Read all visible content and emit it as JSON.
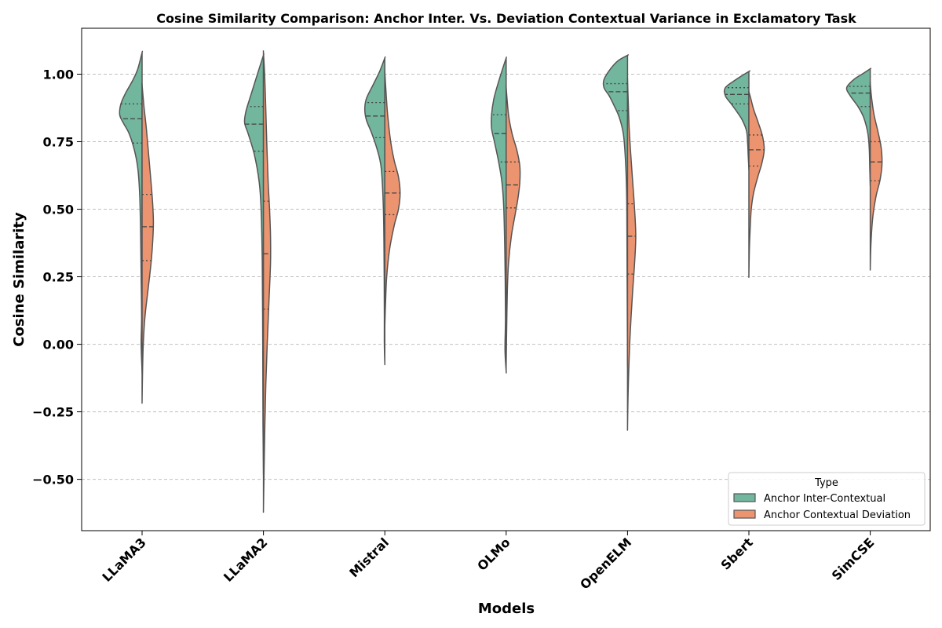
{
  "chart_data": {
    "type": "violin",
    "split": true,
    "title": "Cosine Similarity Comparison: Anchor Inter. Vs. Deviation Contextual Variance in Exclamatory Task",
    "xlabel": "Models",
    "ylabel": "Cosine Similarity",
    "ylim": [
      -0.69,
      1.17
    ],
    "yticks": [
      -0.5,
      -0.25,
      0.0,
      0.25,
      0.5,
      0.75,
      1.0
    ],
    "ytick_labels": [
      "−0.50",
      "−0.25",
      "0.00",
      "0.25",
      "0.50",
      "0.75",
      "1.00"
    ],
    "grid": "y-dashed",
    "categories": [
      "LLaMA3",
      "LLaMA2",
      "Mistral",
      "OLMo",
      "OpenELM",
      "Sbert",
      "SimCSE"
    ],
    "legend": {
      "title": "Type",
      "position": "lower-right",
      "entries": [
        "Anchor Inter-Contextual",
        "Anchor Contextual Deviation"
      ]
    },
    "colors": {
      "Anchor Inter-Contextual": "#72b69e",
      "Anchor Contextual Deviation": "#ec9470",
      "edge": "#555555",
      "grid": "#c0c0c0"
    },
    "series": [
      {
        "name": "Anchor Inter-Contextual",
        "side": "left",
        "violins": [
          {
            "min": -0.1,
            "max": 1.08,
            "q1": 0.745,
            "median": 0.835,
            "q3": 0.89,
            "profile": [
              [
                -0.1,
                0.0
              ],
              [
                0.0,
                0.04
              ],
              [
                0.1,
                0.02
              ],
              [
                0.25,
                0.04
              ],
              [
                0.4,
                0.06
              ],
              [
                0.55,
                0.1
              ],
              [
                0.65,
                0.18
              ],
              [
                0.72,
                0.33
              ],
              [
                0.78,
                0.55
              ],
              [
                0.82,
                0.8
              ],
              [
                0.85,
                0.95
              ],
              [
                0.89,
                0.9
              ],
              [
                0.93,
                0.7
              ],
              [
                0.98,
                0.38
              ],
              [
                1.02,
                0.18
              ],
              [
                1.08,
                0.0
              ]
            ]
          },
          {
            "min": -0.47,
            "max": 1.07,
            "q1": 0.715,
            "median": 0.815,
            "q3": 0.88,
            "profile": [
              [
                -0.47,
                0.0
              ],
              [
                -0.3,
                0.02
              ],
              [
                0.0,
                0.03
              ],
              [
                0.3,
                0.05
              ],
              [
                0.5,
                0.1
              ],
              [
                0.6,
                0.18
              ],
              [
                0.7,
                0.38
              ],
              [
                0.78,
                0.65
              ],
              [
                0.82,
                0.8
              ],
              [
                0.86,
                0.75
              ],
              [
                0.91,
                0.58
              ],
              [
                0.96,
                0.4
              ],
              [
                1.01,
                0.22
              ],
              [
                1.07,
                0.0
              ]
            ]
          },
          {
            "min": -0.07,
            "max": 1.06,
            "q1": 0.765,
            "median": 0.845,
            "q3": 0.895,
            "profile": [
              [
                -0.07,
                0.0
              ],
              [
                0.0,
                0.02
              ],
              [
                0.1,
                0.02
              ],
              [
                0.3,
                0.03
              ],
              [
                0.5,
                0.06
              ],
              [
                0.65,
                0.15
              ],
              [
                0.72,
                0.32
              ],
              [
                0.78,
                0.55
              ],
              [
                0.83,
                0.78
              ],
              [
                0.87,
                0.85
              ],
              [
                0.91,
                0.78
              ],
              [
                0.96,
                0.5
              ],
              [
                1.01,
                0.22
              ],
              [
                1.06,
                0.0
              ]
            ]
          },
          {
            "min": -0.1,
            "max": 1.06,
            "q1": 0.675,
            "median": 0.78,
            "q3": 0.85,
            "profile": [
              [
                -0.1,
                0.0
              ],
              [
                -0.02,
                0.05
              ],
              [
                0.1,
                0.03
              ],
              [
                0.3,
                0.05
              ],
              [
                0.5,
                0.1
              ],
              [
                0.6,
                0.18
              ],
              [
                0.68,
                0.33
              ],
              [
                0.75,
                0.5
              ],
              [
                0.8,
                0.62
              ],
              [
                0.85,
                0.62
              ],
              [
                0.91,
                0.52
              ],
              [
                0.97,
                0.33
              ],
              [
                1.02,
                0.15
              ],
              [
                1.06,
                0.0
              ]
            ]
          },
          {
            "min": -0.07,
            "max": 1.07,
            "q1": 0.865,
            "median": 0.935,
            "q3": 0.965,
            "profile": [
              [
                -0.07,
                0.0
              ],
              [
                0.1,
                0.01
              ],
              [
                0.3,
                0.02
              ],
              [
                0.5,
                0.03
              ],
              [
                0.6,
                0.05
              ],
              [
                0.7,
                0.1
              ],
              [
                0.78,
                0.18
              ],
              [
                0.84,
                0.35
              ],
              [
                0.88,
                0.55
              ],
              [
                0.92,
                0.78
              ],
              [
                0.95,
                1.0
              ],
              [
                0.98,
                1.0
              ],
              [
                1.02,
                0.72
              ],
              [
                1.05,
                0.4
              ],
              [
                1.07,
                0.0
              ]
            ]
          },
          {
            "min": 0.65,
            "max": 1.01,
            "q1": 0.89,
            "median": 0.925,
            "q3": 0.95,
            "profile": [
              [
                0.65,
                0.0
              ],
              [
                0.7,
                0.03
              ],
              [
                0.74,
                0.05
              ],
              [
                0.79,
                0.1
              ],
              [
                0.83,
                0.28
              ],
              [
                0.86,
                0.5
              ],
              [
                0.89,
                0.75
              ],
              [
                0.92,
                1.0
              ],
              [
                0.95,
                1.0
              ],
              [
                0.98,
                0.55
              ],
              [
                1.01,
                0.0
              ]
            ]
          },
          {
            "min": 0.59,
            "max": 1.02,
            "q1": 0.88,
            "median": 0.93,
            "q3": 0.955,
            "profile": [
              [
                0.59,
                0.0
              ],
              [
                0.65,
                0.02
              ],
              [
                0.72,
                0.04
              ],
              [
                0.78,
                0.1
              ],
              [
                0.84,
                0.28
              ],
              [
                0.88,
                0.52
              ],
              [
                0.92,
                0.85
              ],
              [
                0.95,
                1.0
              ],
              [
                0.98,
                0.7
              ],
              [
                1.0,
                0.35
              ],
              [
                1.02,
                0.0
              ]
            ]
          }
        ]
      },
      {
        "name": "Anchor Contextual Deviation",
        "side": "right",
        "violins": [
          {
            "min": -0.21,
            "max": 0.96,
            "q1": 0.31,
            "median": 0.435,
            "q3": 0.555,
            "profile": [
              [
                -0.21,
                0.0
              ],
              [
                -0.1,
                0.02
              ],
              [
                0.0,
                0.05
              ],
              [
                0.1,
                0.12
              ],
              [
                0.2,
                0.25
              ],
              [
                0.3,
                0.38
              ],
              [
                0.38,
                0.45
              ],
              [
                0.45,
                0.48
              ],
              [
                0.52,
                0.45
              ],
              [
                0.6,
                0.38
              ],
              [
                0.7,
                0.28
              ],
              [
                0.8,
                0.18
              ],
              [
                0.88,
                0.08
              ],
              [
                0.96,
                0.0
              ]
            ]
          },
          {
            "min": -0.61,
            "max": 1.08,
            "q1": 0.13,
            "median": 0.335,
            "q3": 0.53,
            "profile": [
              [
                -0.61,
                0.0
              ],
              [
                -0.45,
                0.03
              ],
              [
                -0.3,
                0.06
              ],
              [
                -0.15,
                0.1
              ],
              [
                0.0,
                0.16
              ],
              [
                0.15,
                0.23
              ],
              [
                0.3,
                0.3
              ],
              [
                0.4,
                0.3
              ],
              [
                0.5,
                0.26
              ],
              [
                0.6,
                0.2
              ],
              [
                0.75,
                0.14
              ],
              [
                0.9,
                0.09
              ],
              [
                1.0,
                0.05
              ],
              [
                1.08,
                0.0
              ]
            ]
          },
          {
            "min": 0.065,
            "max": 1.01,
            "q1": 0.48,
            "median": 0.56,
            "q3": 0.64,
            "profile": [
              [
                0.065,
                0.0
              ],
              [
                0.15,
                0.03
              ],
              [
                0.25,
                0.08
              ],
              [
                0.35,
                0.2
              ],
              [
                0.44,
                0.4
              ],
              [
                0.5,
                0.58
              ],
              [
                0.56,
                0.65
              ],
              [
                0.62,
                0.58
              ],
              [
                0.68,
                0.4
              ],
              [
                0.75,
                0.25
              ],
              [
                0.85,
                0.12
              ],
              [
                0.95,
                0.04
              ],
              [
                1.01,
                0.0
              ]
            ]
          },
          {
            "min": -0.07,
            "max": 0.95,
            "q1": 0.505,
            "median": 0.59,
            "q3": 0.675,
            "profile": [
              [
                -0.07,
                0.0
              ],
              [
                0.05,
                0.02
              ],
              [
                0.2,
                0.05
              ],
              [
                0.3,
                0.1
              ],
              [
                0.4,
                0.22
              ],
              [
                0.48,
                0.38
              ],
              [
                0.54,
                0.5
              ],
              [
                0.6,
                0.58
              ],
              [
                0.66,
                0.58
              ],
              [
                0.72,
                0.45
              ],
              [
                0.78,
                0.25
              ],
              [
                0.85,
                0.1
              ],
              [
                0.95,
                0.0
              ]
            ]
          },
          {
            "min": -0.31,
            "max": 0.98,
            "q1": 0.26,
            "median": 0.4,
            "q3": 0.52,
            "profile": [
              [
                -0.31,
                0.0
              ],
              [
                -0.2,
                0.02
              ],
              [
                -0.1,
                0.05
              ],
              [
                0.0,
                0.09
              ],
              [
                0.1,
                0.15
              ],
              [
                0.2,
                0.22
              ],
              [
                0.3,
                0.3
              ],
              [
                0.4,
                0.35
              ],
              [
                0.5,
                0.3
              ],
              [
                0.6,
                0.22
              ],
              [
                0.7,
                0.14
              ],
              [
                0.8,
                0.07
              ],
              [
                0.9,
                0.03
              ],
              [
                0.98,
                0.0
              ]
            ]
          },
          {
            "min": 0.255,
            "max": 0.935,
            "q1": 0.66,
            "median": 0.72,
            "q3": 0.775,
            "profile": [
              [
                0.255,
                0.0
              ],
              [
                0.35,
                0.02
              ],
              [
                0.42,
                0.05
              ],
              [
                0.5,
                0.1
              ],
              [
                0.56,
                0.2
              ],
              [
                0.62,
                0.38
              ],
              [
                0.67,
                0.55
              ],
              [
                0.72,
                0.65
              ],
              [
                0.77,
                0.58
              ],
              [
                0.82,
                0.4
              ],
              [
                0.87,
                0.2
              ],
              [
                0.91,
                0.08
              ],
              [
                0.935,
                0.0
              ]
            ]
          },
          {
            "min": 0.28,
            "max": 0.965,
            "q1": 0.605,
            "median": 0.675,
            "q3": 0.75,
            "profile": [
              [
                0.28,
                0.0
              ],
              [
                0.35,
                0.02
              ],
              [
                0.42,
                0.06
              ],
              [
                0.48,
                0.12
              ],
              [
                0.55,
                0.25
              ],
              [
                0.61,
                0.42
              ],
              [
                0.67,
                0.5
              ],
              [
                0.73,
                0.46
              ],
              [
                0.79,
                0.32
              ],
              [
                0.85,
                0.16
              ],
              [
                0.91,
                0.06
              ],
              [
                0.965,
                0.0
              ]
            ]
          }
        ]
      }
    ]
  }
}
